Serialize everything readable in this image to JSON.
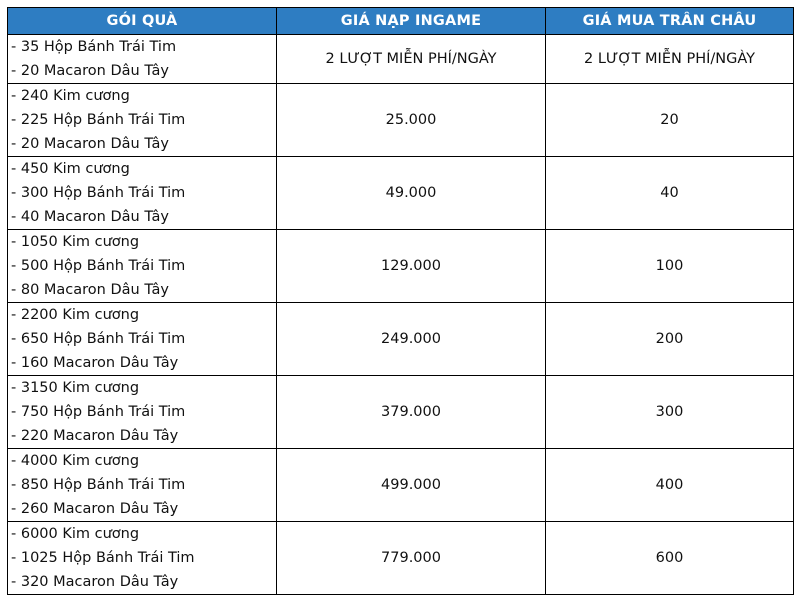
{
  "table": {
    "headers": [
      "GÓI QUÀ",
      "GIÁ NẠP INGAME",
      "GIÁ MUA TRÂN CHÂU"
    ],
    "rows": [
      {
        "items": [
          "- 35 Hộp Bánh Trái Tim",
          "- 20 Macaron Dâu Tây"
        ],
        "ingame_price": "2 LƯỢT MIỄN PHÍ/NGÀY",
        "pearl_price": "2 LƯỢT MIỄN PHÍ/NGÀY"
      },
      {
        "items": [
          "- 240 Kim cương",
          "- 225 Hộp Bánh Trái Tim",
          "- 20 Macaron Dâu Tây"
        ],
        "ingame_price": "25.000",
        "pearl_price": "20"
      },
      {
        "items": [
          "- 450 Kim cương",
          "- 300 Hộp Bánh Trái Tim",
          "- 40 Macaron Dâu Tây"
        ],
        "ingame_price": "49.000",
        "pearl_price": "40"
      },
      {
        "items": [
          "- 1050 Kim cương",
          "- 500 Hộp Bánh Trái Tim",
          "- 80 Macaron Dâu Tây"
        ],
        "ingame_price": "129.000",
        "pearl_price": "100"
      },
      {
        "items": [
          "- 2200 Kim cương",
          "- 650 Hộp Bánh Trái Tim",
          "- 160 Macaron Dâu Tây"
        ],
        "ingame_price": "249.000",
        "pearl_price": "200"
      },
      {
        "items": [
          "- 3150 Kim cương",
          "- 750 Hộp Bánh Trái Tim",
          "- 220 Macaron Dâu Tây"
        ],
        "ingame_price": "379.000",
        "pearl_price": "300"
      },
      {
        "items": [
          "- 4000 Kim cương",
          "- 850 Hộp Bánh Trái Tim",
          "- 260 Macaron Dâu Tây"
        ],
        "ingame_price": "499.000",
        "pearl_price": "400"
      },
      {
        "items": [
          "- 6000 Kim cương",
          "- 1025 Hộp Bánh Trái Tim",
          "- 320 Macaron Dâu Tây"
        ],
        "ingame_price": "779.000",
        "pearl_price": "600"
      }
    ]
  },
  "colors": {
    "header_bg": "#2e7dc2",
    "header_text": "#ffffff",
    "border": "#000000"
  }
}
